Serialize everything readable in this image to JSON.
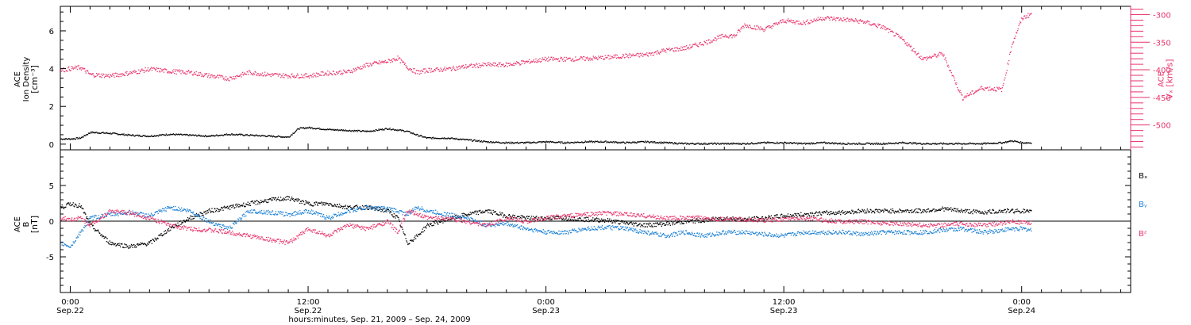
{
  "colors": {
    "density": "#000000",
    "vx": "#e8336b",
    "bx": "#000000",
    "by": "#1a7fd4",
    "bz": "#e8336b",
    "axis": "#000000"
  },
  "figure": {
    "xlabel": "hours:minutes, Sep. 21, 2009 – Sep. 24, 2009",
    "xticks": [
      {
        "hour": 0,
        "time": "0:00",
        "date": "Sep.22"
      },
      {
        "hour": 12,
        "time": "12:00",
        "date": "Sep.22"
      },
      {
        "hour": 24,
        "time": "0:00",
        "date": "Sep.23"
      },
      {
        "hour": 36,
        "time": "12:00",
        "date": "Sep.23"
      },
      {
        "hour": 48,
        "time": "0:00",
        "date": "Sep.24"
      }
    ],
    "xlim_hours": [
      -0.5,
      53.5
    ]
  },
  "chart_data": [
    {
      "type": "scatter",
      "panel": "top",
      "ylabel_lines": [
        "ACE",
        "Ion Density",
        "[cm⁻³]"
      ],
      "ylim": [
        -0.3,
        7.3
      ],
      "yticks": [
        0,
        2,
        4,
        6
      ],
      "y2label_lines": [
        "ACE",
        "Vₓ [km/s]"
      ],
      "y2lim": [
        -545,
        -285
      ],
      "y2ticks": [
        -300,
        -350,
        -400,
        -450,
        -500
      ],
      "series": [
        {
          "key": "density",
          "x": [
            -0.5,
            0,
            0.5,
            1,
            2,
            3,
            4,
            5,
            6,
            7,
            8,
            9,
            10,
            11,
            11.5,
            12,
            13,
            14,
            15,
            16,
            17,
            17.5,
            18,
            19,
            20,
            21,
            22,
            23,
            24,
            25,
            26,
            27,
            28,
            29,
            30,
            31,
            32,
            33,
            34,
            35,
            36,
            37,
            38,
            39,
            40,
            41,
            42,
            43,
            44,
            45,
            46,
            47,
            47.5,
            48,
            48.5
          ],
          "y": [
            0.3,
            0.3,
            0.35,
            0.65,
            0.6,
            0.5,
            0.45,
            0.55,
            0.5,
            0.45,
            0.55,
            0.5,
            0.45,
            0.4,
            0.85,
            0.9,
            0.8,
            0.75,
            0.7,
            0.85,
            0.7,
            0.5,
            0.35,
            0.35,
            0.25,
            0.15,
            0.1,
            0.1,
            0.15,
            0.1,
            0.15,
            0.15,
            0.1,
            0.15,
            0.1,
            0.05,
            0.05,
            0.05,
            0.05,
            0.1,
            0.1,
            0.05,
            0.1,
            0.05,
            0.05,
            0.05,
            0.1,
            0.05,
            0.05,
            0.05,
            0.05,
            0.1,
            0.2,
            0.1,
            0.1
          ]
        },
        {
          "key": "vx",
          "axis": "right",
          "x": [
            -0.5,
            0,
            0.5,
            1,
            2,
            3,
            4,
            5,
            6,
            7,
            8,
            9,
            10,
            11,
            12,
            13,
            14,
            15,
            16,
            16.5,
            17,
            17.5,
            18,
            19,
            20,
            21,
            22,
            23,
            24,
            25,
            26,
            27,
            28,
            29,
            30,
            31,
            32,
            33,
            33.5,
            34,
            35,
            36,
            37,
            38,
            39,
            40,
            41,
            42,
            43,
            44,
            45,
            46,
            47,
            47.5,
            48,
            48.5
          ],
          "y": [
            -400,
            -397,
            -395,
            -408,
            -410,
            -405,
            -398,
            -402,
            -404,
            -410,
            -415,
            -404,
            -408,
            -410,
            -410,
            -405,
            -403,
            -390,
            -384,
            -378,
            -395,
            -404,
            -400,
            -398,
            -393,
            -390,
            -390,
            -385,
            -380,
            -380,
            -379,
            -377,
            -374,
            -372,
            -364,
            -360,
            -350,
            -337,
            -338,
            -318,
            -326,
            -310,
            -314,
            -305,
            -308,
            -312,
            -322,
            -345,
            -380,
            -370,
            -450,
            -432,
            -435,
            -352,
            -306,
            -297
          ]
        }
      ]
    },
    {
      "type": "scatter",
      "panel": "bottom",
      "ylabel_lines": [
        "ACE",
        "B",
        "[nT]"
      ],
      "ylim": [
        -10,
        10
      ],
      "yticks": [
        -5,
        0,
        5
      ],
      "legend_labels": [
        {
          "key": "bx",
          "label": "Bₓ"
        },
        {
          "key": "by",
          "label": "Bᵧ"
        },
        {
          "key": "bz",
          "label": "Bᶻ"
        }
      ],
      "series": [
        {
          "key": "bx",
          "x": [
            -0.5,
            0,
            0.5,
            1,
            2,
            3,
            4,
            5,
            6,
            7,
            8,
            9,
            10,
            11,
            12,
            13,
            14,
            15,
            16,
            16.5,
            17,
            17.5,
            18,
            19,
            20,
            21,
            22,
            23,
            24,
            25,
            26,
            27,
            28,
            29,
            30,
            31,
            32,
            33,
            34,
            35,
            36,
            37,
            38,
            39,
            40,
            41,
            42,
            43,
            44,
            45,
            46,
            47,
            47.5,
            48,
            48.5
          ],
          "y": [
            2.0,
            2.5,
            2.2,
            -0.5,
            -3.0,
            -3.5,
            -3.0,
            -1.0,
            0.5,
            1.5,
            2.0,
            2.5,
            3.0,
            3.3,
            2.5,
            2.5,
            2.0,
            2.0,
            1.5,
            0.5,
            -3.0,
            -2.0,
            -0.5,
            0.3,
            1.0,
            1.5,
            0.8,
            0.5,
            0.5,
            0.5,
            0.3,
            0.2,
            -0.2,
            -0.5,
            -0.3,
            0.0,
            0.2,
            0.5,
            0.3,
            0.5,
            0.8,
            1.0,
            1.2,
            1.3,
            1.5,
            1.5,
            1.5,
            1.5,
            1.8,
            1.5,
            1.3,
            1.5,
            1.5,
            1.5,
            1.3
          ]
        },
        {
          "key": "by",
          "x": [
            -0.5,
            0,
            0.5,
            1,
            2,
            3,
            4,
            5,
            6,
            7,
            8,
            9,
            10,
            11,
            12,
            13,
            14,
            15,
            16,
            16.5,
            17,
            17.5,
            18,
            19,
            20,
            21,
            22,
            23,
            24,
            25,
            26,
            27,
            28,
            29,
            30,
            31,
            32,
            33,
            34,
            35,
            36,
            37,
            38,
            39,
            40,
            41,
            42,
            43,
            44,
            45,
            46,
            47,
            47.5,
            48,
            48.5
          ],
          "y": [
            -3.0,
            -3.5,
            -1.5,
            0.5,
            1.0,
            1.3,
            0.8,
            2.0,
            1.5,
            0.0,
            -1.0,
            1.5,
            1.3,
            1.0,
            1.5,
            0.5,
            1.5,
            2.0,
            1.8,
            1.5,
            1.0,
            2.0,
            1.5,
            1.0,
            0.5,
            -0.5,
            -0.3,
            -1.0,
            -1.5,
            -1.5,
            -1.0,
            -0.8,
            -1.0,
            -1.5,
            -2.0,
            -1.5,
            -2.0,
            -1.5,
            -1.5,
            -1.8,
            -2.0,
            -1.5,
            -1.5,
            -1.5,
            -1.8,
            -1.5,
            -1.5,
            -1.5,
            -1.2,
            -1.0,
            -1.5,
            -1.2,
            -1.0,
            -1.0,
            -1.2
          ]
        },
        {
          "key": "bz",
          "x": [
            -0.5,
            0,
            0.5,
            1,
            2,
            3,
            4,
            5,
            6,
            7,
            8,
            9,
            10,
            11,
            12,
            13,
            14,
            15,
            16,
            16.5,
            17,
            17.5,
            18,
            19,
            20,
            21,
            22,
            23,
            24,
            25,
            26,
            27,
            28,
            29,
            30,
            31,
            32,
            33,
            34,
            35,
            36,
            37,
            38,
            39,
            40,
            41,
            42,
            43,
            44,
            45,
            46,
            47,
            47.5,
            48,
            48.5
          ],
          "y": [
            0.5,
            0.3,
            0.5,
            -0.5,
            1.5,
            1.2,
            0.5,
            -0.5,
            -1.0,
            -1.2,
            -1.5,
            -2.0,
            -2.5,
            -3.0,
            -1.0,
            -2.0,
            -0.5,
            -1.0,
            0.0,
            -1.5,
            1.5,
            1.0,
            0.5,
            0.5,
            0.0,
            -0.5,
            0.5,
            0.0,
            0.5,
            0.8,
            1.0,
            1.2,
            1.0,
            0.8,
            0.5,
            0.5,
            0.5,
            0.3,
            0.3,
            0.2,
            0.3,
            0.5,
            0.2,
            0.0,
            0.0,
            -0.2,
            -0.3,
            -0.5,
            -0.5,
            -0.3,
            -0.5,
            -0.2,
            0.0,
            -0.2,
            -0.2
          ]
        }
      ]
    }
  ]
}
